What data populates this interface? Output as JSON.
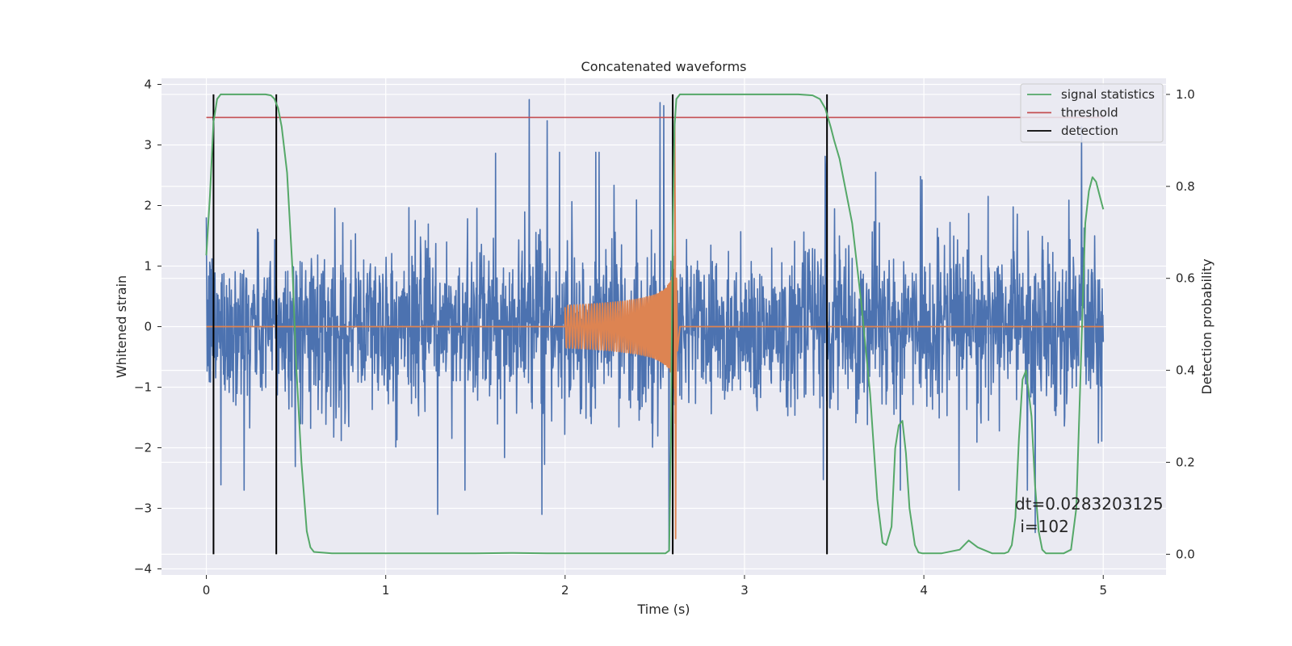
{
  "chart_data": {
    "type": "line",
    "title": "Concatenated waveforms",
    "xlabel": "Time (s)",
    "ylabel_left": "Whitened strain",
    "ylabel_right": "Detection probability",
    "xlim": [
      -0.25,
      5.35
    ],
    "ylim_left": [
      -4.1,
      4.1
    ],
    "ylim_right": [
      -0.045,
      1.035
    ],
    "x_ticks": [
      "0",
      "1",
      "2",
      "3",
      "4",
      "5"
    ],
    "x_tick_values": [
      0,
      1,
      2,
      3,
      4,
      5
    ],
    "y_left_ticks": [
      "−4",
      "−3",
      "−2",
      "−1",
      "0",
      "1",
      "2",
      "3",
      "4"
    ],
    "y_left_tick_values": [
      -4,
      -3,
      -2,
      -1,
      0,
      1,
      2,
      3,
      4
    ],
    "y_right_ticks": [
      "0.0",
      "0.2",
      "0.4",
      "0.6",
      "0.8",
      "1.0"
    ],
    "y_right_tick_values": [
      0,
      0.2,
      0.4,
      0.6,
      0.8,
      1.0
    ],
    "grid": true,
    "legend_position": "top-right",
    "legend": [
      "signal statistics",
      "threshold",
      "detection"
    ],
    "annotation_lines": [
      "dt=0.0283203125",
      " i=102"
    ],
    "colors": {
      "whitened_strain": "#4c72b0",
      "template": "#dd8452",
      "signal_statistics": "#55a868",
      "threshold": "#c44e52",
      "detection": "#000000",
      "background": "#eaeaf2",
      "grid": "#ffffff"
    },
    "series": [
      {
        "name": "signal statistics",
        "axis": "right",
        "x": [
          0.0,
          0.02,
          0.04,
          0.06,
          0.08,
          0.1,
          0.15,
          0.2,
          0.25,
          0.3,
          0.33,
          0.36,
          0.38,
          0.4,
          0.42,
          0.45,
          0.48,
          0.5,
          0.53,
          0.56,
          0.58,
          0.6,
          0.7,
          1.0,
          1.5,
          1.7,
          1.9,
          2.2,
          2.5,
          2.56,
          2.58,
          2.59,
          2.6,
          2.61,
          2.62,
          2.64,
          2.67,
          2.7,
          3.0,
          3.3,
          3.38,
          3.42,
          3.45,
          3.48,
          3.5,
          3.53,
          3.56,
          3.6,
          3.65,
          3.7,
          3.74,
          3.77,
          3.79,
          3.82,
          3.84,
          3.86,
          3.88,
          3.9,
          3.92,
          3.95,
          3.97,
          3.99,
          4.02,
          4.1,
          4.2,
          4.25,
          4.3,
          4.38,
          4.45,
          4.47,
          4.49,
          4.51,
          4.53,
          4.55,
          4.57,
          4.6,
          4.62,
          4.64,
          4.66,
          4.68,
          4.72,
          4.78,
          4.82,
          4.85,
          4.87,
          4.89,
          4.9,
          4.92,
          4.94,
          4.96,
          4.98,
          5.0
        ],
        "y": [
          0.65,
          0.78,
          0.94,
          0.99,
          1.0,
          1.0,
          1.0,
          1.0,
          1.0,
          1.0,
          1.0,
          0.998,
          0.99,
          0.97,
          0.93,
          0.83,
          0.62,
          0.42,
          0.2,
          0.05,
          0.015,
          0.005,
          0.002,
          0.002,
          0.002,
          0.003,
          0.002,
          0.002,
          0.002,
          0.002,
          0.008,
          0.25,
          0.7,
          0.93,
          0.99,
          1.0,
          1.0,
          1.0,
          1.0,
          1.0,
          0.998,
          0.99,
          0.97,
          0.93,
          0.9,
          0.86,
          0.8,
          0.72,
          0.55,
          0.35,
          0.12,
          0.025,
          0.02,
          0.06,
          0.23,
          0.28,
          0.29,
          0.22,
          0.1,
          0.02,
          0.004,
          0.002,
          0.002,
          0.002,
          0.01,
          0.03,
          0.015,
          0.002,
          0.002,
          0.005,
          0.02,
          0.08,
          0.25,
          0.38,
          0.4,
          0.3,
          0.15,
          0.05,
          0.01,
          0.002,
          0.002,
          0.002,
          0.01,
          0.1,
          0.35,
          0.6,
          0.72,
          0.79,
          0.82,
          0.81,
          0.78,
          0.75
        ]
      },
      {
        "name": "threshold",
        "axis": "right",
        "x": [
          0.0,
          5.0
        ],
        "y": [
          0.95,
          0.95
        ]
      },
      {
        "name": "detection",
        "axis": "right",
        "x": [
          0.04,
          0.39,
          2.6,
          3.46
        ],
        "y_range": [
          0.0,
          1.0
        ]
      },
      {
        "axis": "left",
        "kind": "template chirp",
        "start_x": 2.0,
        "merger_x": 2.615,
        "end_x": 2.64,
        "peak_value": 3.4,
        "trough_value": -3.5,
        "baseline_value": 0.0
      },
      {
        "axis": "left",
        "kind": "whitened strain noise",
        "x_range": [
          0.0,
          5.0
        ],
        "typical_range": [
          -1.5,
          1.8
        ],
        "min_value": -3.7,
        "max_value": 3.75,
        "spike_events": [
          {
            "x": 1.8,
            "y": 3.75
          },
          {
            "x": 1.9,
            "y": 3.4
          },
          {
            "x": 2.53,
            "y": 3.7
          },
          {
            "x": 2.55,
            "y": 3.65
          },
          {
            "x": 2.58,
            "y": -3.7
          },
          {
            "x": 4.88,
            "y": 3.3
          },
          {
            "x": 1.29,
            "y": -3.1
          },
          {
            "x": 1.87,
            "y": -3.1
          },
          {
            "x": 4.62,
            "y": -3.4
          },
          {
            "x": 0.21,
            "y": -2.7
          }
        ]
      }
    ]
  }
}
